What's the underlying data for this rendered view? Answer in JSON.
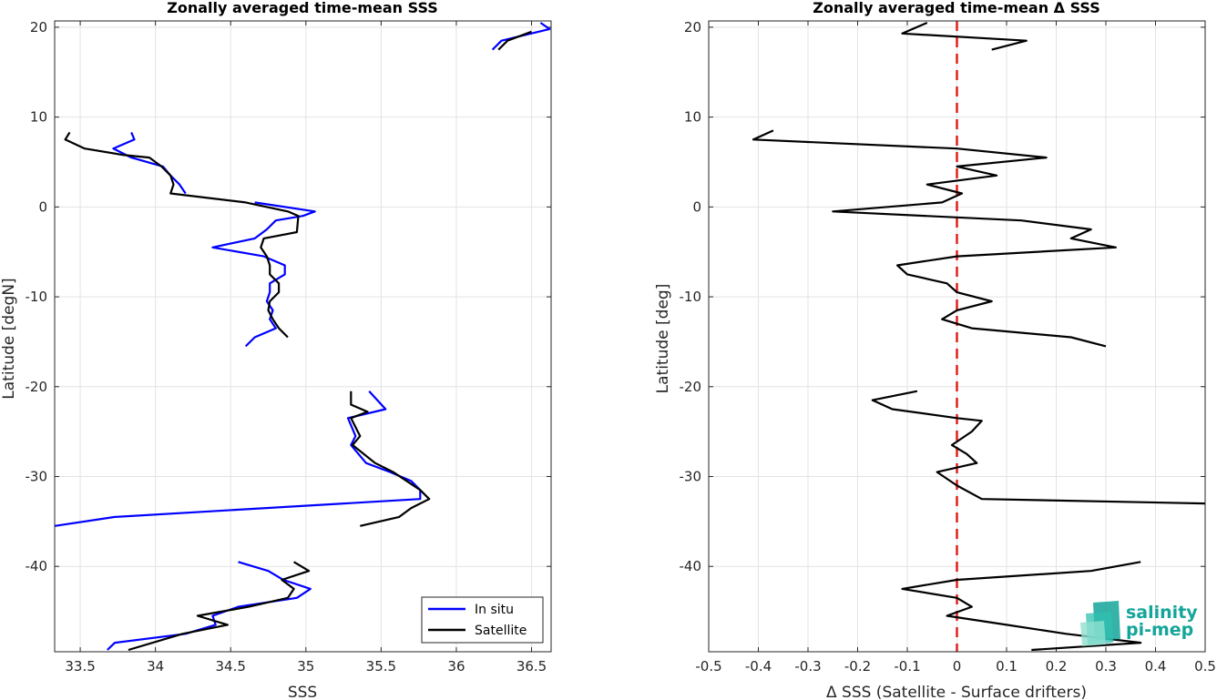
{
  "colors": {
    "in_situ": "#0000ff",
    "satellite": "#000000",
    "zero_line": "#e0201b",
    "logo": "#14a59a"
  },
  "logo": {
    "line1": "salinity",
    "line2": "pi-mep"
  },
  "chart_data": [
    {
      "type": "line",
      "title": "Zonally averaged time-mean SSS",
      "xlabel": "SSS",
      "ylabel": "Latitude [degN]",
      "xlim": [
        33.33,
        36.63
      ],
      "ylim": [
        -49.5,
        20.7
      ],
      "xticks": [
        33.5,
        34,
        34.5,
        35,
        35.5,
        36,
        36.5
      ],
      "xtick_labels": [
        "33.5",
        "34",
        "34.5",
        "35",
        "35.5",
        "36",
        "36.5"
      ],
      "yticks": [
        20,
        10,
        0,
        -10,
        -20,
        -30,
        -40
      ],
      "ytick_labels": [
        "20",
        "10",
        "0",
        "-10",
        "-20",
        "-30",
        "-40"
      ],
      "grid": true,
      "legend": {
        "position": "bottom-right",
        "entries": [
          "In situ",
          "Satellite"
        ]
      },
      "series": [
        {
          "name": "In situ",
          "segments": [
            [
              [
                36.56,
                20.5
              ],
              [
                36.62,
                19.8
              ],
              [
                36.3,
                18.5
              ],
              [
                36.24,
                17.5
              ]
            ],
            [
              [
                33.84,
                8.3
              ],
              [
                33.86,
                7.5
              ],
              [
                33.72,
                6.5
              ],
              [
                33.84,
                5.5
              ],
              [
                34.05,
                4.5
              ],
              [
                34.1,
                3.5
              ],
              [
                34.16,
                2.5
              ],
              [
                34.2,
                1.5
              ]
            ],
            [
              [
                34.66,
                0.5
              ],
              [
                35.06,
                -0.5
              ],
              [
                34.98,
                -1
              ],
              [
                34.8,
                -1.5
              ],
              [
                34.74,
                -2.5
              ],
              [
                34.66,
                -3.5
              ],
              [
                34.38,
                -4.5
              ],
              [
                34.72,
                -5.5
              ],
              [
                34.86,
                -6.5
              ],
              [
                34.86,
                -7.5
              ],
              [
                34.76,
                -8.5
              ],
              [
                34.76,
                -9.5
              ],
              [
                34.74,
                -10.5
              ],
              [
                34.78,
                -11.5
              ],
              [
                34.76,
                -12.5
              ],
              [
                34.8,
                -13.5
              ],
              [
                34.66,
                -14.5
              ],
              [
                34.6,
                -15.5
              ]
            ],
            [
              [
                35.42,
                -20.5
              ],
              [
                35.53,
                -22.5
              ],
              [
                35.28,
                -23.5
              ],
              [
                35.33,
                -25.5
              ],
              [
                35.3,
                -26.5
              ],
              [
                35.4,
                -28.5
              ],
              [
                35.56,
                -29.5
              ],
              [
                35.7,
                -30.5
              ],
              [
                35.76,
                -31.5
              ],
              [
                35.76,
                -32.5
              ],
              [
                33.73,
                -34.5
              ],
              [
                33.33,
                -35.5
              ]
            ],
            [
              [
                34.55,
                -39.5
              ],
              [
                34.75,
                -40.5
              ],
              [
                34.85,
                -41.5
              ],
              [
                35.03,
                -42.5
              ],
              [
                34.94,
                -43.5
              ],
              [
                34.55,
                -44.5
              ],
              [
                34.38,
                -45.5
              ],
              [
                34.4,
                -46.5
              ],
              [
                34.2,
                -47.5
              ],
              [
                33.73,
                -48.5
              ],
              [
                33.68,
                -49.3
              ]
            ]
          ]
        },
        {
          "name": "Satellite",
          "segments": [
            [
              [
                36.5,
                19.5
              ],
              [
                36.34,
                18.5
              ],
              [
                36.28,
                17.5
              ]
            ],
            [
              [
                33.43,
                8.3
              ],
              [
                33.4,
                7.5
              ],
              [
                33.53,
                6.5
              ],
              [
                33.78,
                5.8
              ],
              [
                33.96,
                5.5
              ],
              [
                34.04,
                4.5
              ],
              [
                34.1,
                3.5
              ],
              [
                34.12,
                2.5
              ],
              [
                34.1,
                1.5
              ],
              [
                34.6,
                0.5
              ],
              [
                34.88,
                -0.5
              ],
              [
                34.95,
                -1
              ],
              [
                34.94,
                -2.8
              ],
              [
                34.72,
                -3.5
              ],
              [
                34.7,
                -4.5
              ],
              [
                34.74,
                -5.5
              ],
              [
                34.76,
                -6.5
              ],
              [
                34.76,
                -7.5
              ],
              [
                34.82,
                -8.5
              ],
              [
                34.82,
                -9.5
              ],
              [
                34.76,
                -10.5
              ],
              [
                34.75,
                -11.5
              ],
              [
                34.78,
                -12.5
              ],
              [
                34.82,
                -13.5
              ],
              [
                34.88,
                -14.5
              ]
            ],
            [
              [
                35.3,
                -20.5
              ],
              [
                35.3,
                -22
              ],
              [
                35.41,
                -22.8
              ],
              [
                35.3,
                -23.5
              ],
              [
                35.36,
                -25.5
              ],
              [
                35.31,
                -26.5
              ],
              [
                35.46,
                -28.5
              ],
              [
                35.58,
                -29.5
              ],
              [
                35.76,
                -31.5
              ],
              [
                35.82,
                -32.5
              ],
              [
                35.7,
                -33.5
              ],
              [
                35.62,
                -34.5
              ],
              [
                35.36,
                -35.5
              ]
            ],
            [
              [
                34.92,
                -39.5
              ],
              [
                35.02,
                -40.5
              ],
              [
                34.84,
                -41.5
              ],
              [
                34.92,
                -42.5
              ],
              [
                34.88,
                -43.5
              ],
              [
                34.62,
                -44.5
              ],
              [
                34.28,
                -45.5
              ],
              [
                34.48,
                -46.5
              ],
              [
                34.18,
                -47.5
              ],
              [
                33.82,
                -49.3
              ]
            ]
          ]
        }
      ]
    },
    {
      "type": "line",
      "title": "Zonally averaged time-mean Δ SSS",
      "xlabel": "Δ SSS (Satellite - Surface drifters)",
      "ylabel": "Latitude [deg]",
      "xlim": [
        -0.5,
        0.5
      ],
      "ylim": [
        -49.5,
        20.7
      ],
      "xticks": [
        -0.5,
        -0.4,
        -0.3,
        -0.2,
        -0.1,
        0,
        0.1,
        0.2,
        0.3,
        0.4,
        0.5
      ],
      "xtick_labels": [
        "-0.5",
        "-0.4",
        "-0.3",
        "-0.2",
        "-0.1",
        "0",
        "0.1",
        "0.2",
        "0.3",
        "0.4",
        "0.5"
      ],
      "yticks": [
        20,
        10,
        0,
        -10,
        -20,
        -30,
        -40
      ],
      "ytick_labels": [
        "20",
        "10",
        "0",
        "-10",
        "-20",
        "-30",
        "-40"
      ],
      "grid": true,
      "reference_line": {
        "x": 0,
        "style": "dashed"
      },
      "series": [
        {
          "name": "",
          "segments": [
            [
              [
                -0.06,
                20.5
              ],
              [
                -0.11,
                19.3
              ],
              [
                0.14,
                18.5
              ],
              [
                0.07,
                17.5
              ]
            ],
            [
              [
                -0.37,
                8.5
              ],
              [
                -0.41,
                7.5
              ],
              [
                0.0,
                6.5
              ],
              [
                0.18,
                5.5
              ],
              [
                0.0,
                4.5
              ],
              [
                0.08,
                3.5
              ],
              [
                -0.06,
                2.5
              ],
              [
                0.01,
                1.5
              ],
              [
                -0.03,
                0.5
              ],
              [
                -0.25,
                -0.5
              ],
              [
                0.13,
                -1.5
              ],
              [
                0.27,
                -2.5
              ],
              [
                0.23,
                -3.5
              ],
              [
                0.32,
                -4.5
              ],
              [
                0.0,
                -5.5
              ],
              [
                -0.12,
                -6.5
              ],
              [
                -0.1,
                -7.5
              ],
              [
                -0.02,
                -8.5
              ],
              [
                0.0,
                -9.5
              ],
              [
                0.07,
                -10.5
              ],
              [
                0.0,
                -11.5
              ],
              [
                -0.03,
                -12.5
              ],
              [
                0.03,
                -13.5
              ],
              [
                0.23,
                -14.5
              ],
              [
                0.3,
                -15.5
              ]
            ],
            [
              [
                -0.08,
                -20.5
              ],
              [
                -0.17,
                -21.5
              ],
              [
                -0.13,
                -22.5
              ],
              [
                0.0,
                -23.5
              ],
              [
                0.05,
                -23.8
              ],
              [
                0.03,
                -25
              ],
              [
                -0.01,
                -26.5
              ],
              [
                0.02,
                -27.5
              ],
              [
                0.04,
                -28.5
              ],
              [
                -0.04,
                -29.5
              ],
              [
                0.0,
                -31
              ],
              [
                0.05,
                -32.5
              ],
              [
                0.5,
                -33
              ]
            ],
            [
              [
                0.37,
                -39.5
              ],
              [
                0.27,
                -40.5
              ],
              [
                0.0,
                -41.5
              ],
              [
                -0.11,
                -42.5
              ],
              [
                0.0,
                -43.5
              ],
              [
                0.03,
                -44.5
              ],
              [
                -0.02,
                -45.5
              ],
              [
                0.1,
                -46.5
              ],
              [
                0.22,
                -47.5
              ],
              [
                0.37,
                -48.5
              ],
              [
                0.15,
                -49.3
              ]
            ]
          ]
        }
      ]
    }
  ]
}
